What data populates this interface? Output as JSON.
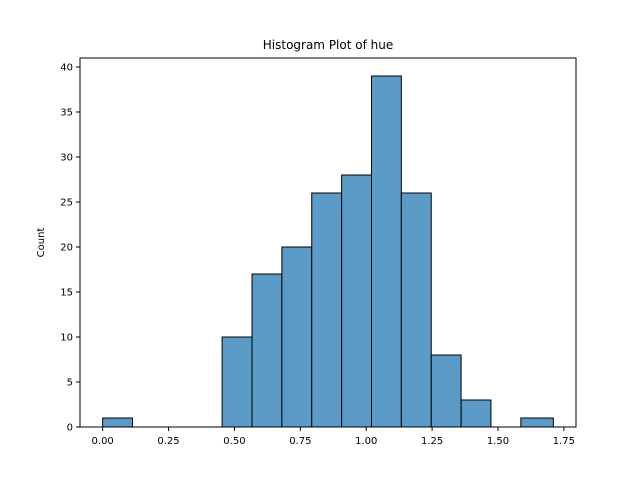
{
  "chart_data": {
    "type": "bar",
    "title": "Histogram Plot of hue",
    "xlabel": "",
    "ylabel": "Count",
    "xlim": [
      -0.086,
      1.796
    ],
    "ylim": [
      0,
      41
    ],
    "bin_edges": [
      0.0,
      0.1133,
      0.2267,
      0.34,
      0.4533,
      0.5667,
      0.68,
      0.7933,
      0.9067,
      1.02,
      1.1333,
      1.2467,
      1.36,
      1.4733,
      1.5867,
      1.71
    ],
    "values": [
      1,
      0,
      0,
      0,
      10,
      17,
      20,
      26,
      28,
      39,
      26,
      8,
      3,
      0,
      1
    ],
    "x_ticks": [
      0.0,
      0.25,
      0.5,
      0.75,
      1.0,
      1.25,
      1.5,
      1.75
    ],
    "x_tick_labels": [
      "0.00",
      "0.25",
      "0.50",
      "0.75",
      "1.00",
      "1.25",
      "1.50",
      "1.75"
    ],
    "y_ticks": [
      0,
      5,
      10,
      15,
      20,
      25,
      30,
      35,
      40
    ],
    "y_tick_labels": [
      "0",
      "5",
      "10",
      "15",
      "20",
      "25",
      "30",
      "35",
      "40"
    ],
    "grid": false,
    "legend": "none",
    "colors": {
      "bar_fill": "#5a9bc8",
      "bar_edge": "#000000",
      "axes": "#000000",
      "background": "#ffffff"
    }
  }
}
